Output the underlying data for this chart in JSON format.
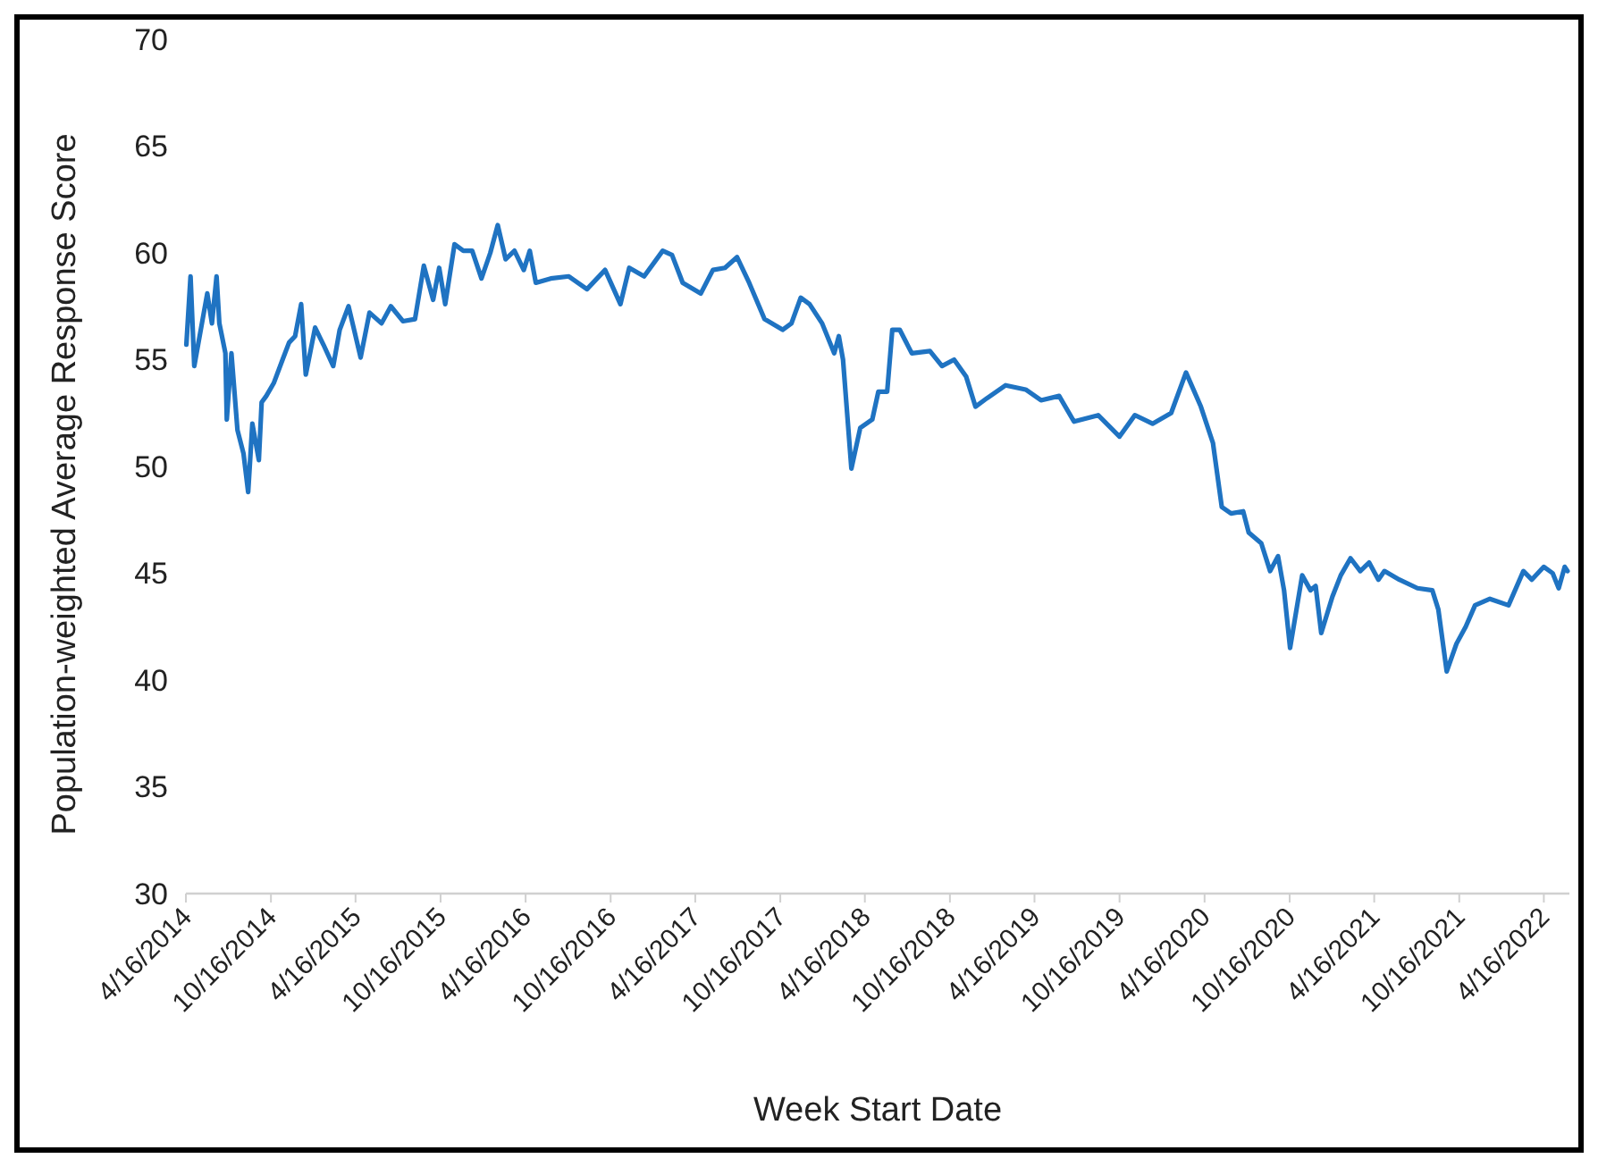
{
  "chart_data": {
    "type": "line",
    "xlabel": "Week Start Date",
    "ylabel": "Population-weighted Average Response Score",
    "xlim": [
      "2014-04-16",
      "2022-06-10"
    ],
    "xticks": [
      {
        "value": "2014-04-16",
        "label": "4/16/2014"
      },
      {
        "value": "2014-10-16",
        "label": "10/16/2014"
      },
      {
        "value": "2015-04-16",
        "label": "4/16/2015"
      },
      {
        "value": "2015-10-16",
        "label": "10/16/2015"
      },
      {
        "value": "2016-04-16",
        "label": "4/16/2016"
      },
      {
        "value": "2016-10-16",
        "label": "10/16/2016"
      },
      {
        "value": "2017-04-16",
        "label": "4/16/2017"
      },
      {
        "value": "2017-10-16",
        "label": "10/16/2017"
      },
      {
        "value": "2018-04-16",
        "label": "4/16/2018"
      },
      {
        "value": "2018-10-16",
        "label": "10/16/2018"
      },
      {
        "value": "2019-04-16",
        "label": "4/16/2019"
      },
      {
        "value": "2019-10-16",
        "label": "10/16/2019"
      },
      {
        "value": "2020-04-16",
        "label": "4/16/2020"
      },
      {
        "value": "2020-10-16",
        "label": "10/16/2020"
      },
      {
        "value": "2021-04-16",
        "label": "4/16/2021"
      },
      {
        "value": "2021-10-16",
        "label": "10/16/2021"
      },
      {
        "value": "2022-04-16",
        "label": "4/16/2022"
      }
    ],
    "ylim": [
      30,
      70
    ],
    "yticks": [
      30,
      35,
      40,
      45,
      50,
      55,
      60,
      65,
      70
    ],
    "grid": false,
    "marker": "none",
    "line_style": "solid",
    "series": [
      {
        "color": "#1f73c2",
        "x": [
          "2014-04-17",
          "2014-04-26",
          "2014-05-04",
          "2014-06-01",
          "2014-06-11",
          "2014-06-21",
          "2014-06-27",
          "2014-07-10",
          "2014-07-13",
          "2014-07-23",
          "2014-08-05",
          "2014-08-18",
          "2014-08-28",
          "2014-09-06",
          "2014-09-20",
          "2014-09-26",
          "2014-10-06",
          "2014-10-22",
          "2014-11-10",
          "2014-11-24",
          "2014-12-07",
          "2014-12-20",
          "2014-12-30",
          "2015-01-19",
          "2015-02-06",
          "2015-02-27",
          "2015-03-13",
          "2015-04-01",
          "2015-04-27",
          "2015-05-16",
          "2015-06-11",
          "2015-07-01",
          "2015-07-27",
          "2015-08-22",
          "2015-09-10",
          "2015-09-30",
          "2015-10-13",
          "2015-10-26",
          "2015-11-15",
          "2015-12-04",
          "2015-12-23",
          "2016-01-12",
          "2016-01-31",
          "2016-02-16",
          "2016-03-04",
          "2016-03-23",
          "2016-04-12",
          "2016-04-25",
          "2016-05-08",
          "2016-06-09",
          "2016-07-18",
          "2016-08-26",
          "2016-10-04",
          "2016-11-06",
          "2016-11-25",
          "2016-12-27",
          "2017-02-05",
          "2017-02-25",
          "2017-03-20",
          "2017-04-28",
          "2017-05-24",
          "2017-06-19",
          "2017-07-15",
          "2017-08-10",
          "2017-09-12",
          "2017-10-21",
          "2017-11-09",
          "2017-11-29",
          "2017-12-18",
          "2018-01-14",
          "2018-02-09",
          "2018-02-19",
          "2018-02-28",
          "2018-03-18",
          "2018-04-06",
          "2018-05-02",
          "2018-05-15",
          "2018-06-03",
          "2018-06-14",
          "2018-06-30",
          "2018-07-26",
          "2018-09-03",
          "2018-09-29",
          "2018-10-25",
          "2018-11-20",
          "2018-12-10",
          "2019-01-04",
          "2019-02-13",
          "2019-03-28",
          "2019-04-30",
          "2019-06-08",
          "2019-07-10",
          "2019-08-31",
          "2019-10-16",
          "2019-11-18",
          "2019-12-26",
          "2020-02-04",
          "2020-03-07",
          "2020-04-08",
          "2020-05-04",
          "2020-05-23",
          "2020-06-12",
          "2020-07-08",
          "2020-07-20",
          "2020-08-16",
          "2020-09-04",
          "2020-09-21",
          "2020-10-04",
          "2020-10-17",
          "2020-11-12",
          "2020-11-30",
          "2020-12-11",
          "2020-12-23",
          "2021-01-16",
          "2021-02-03",
          "2021-02-24",
          "2021-03-17",
          "2021-04-05",
          "2021-04-25",
          "2021-05-08",
          "2021-06-09",
          "2021-07-18",
          "2021-08-19",
          "2021-09-01",
          "2021-09-19",
          "2021-10-10",
          "2021-10-30",
          "2021-11-19",
          "2021-12-21",
          "2022-01-30",
          "2022-03-03",
          "2022-03-21",
          "2022-04-16",
          "2022-05-05",
          "2022-05-18",
          "2022-05-31",
          "2022-06-06"
        ],
        "values": [
          55.7,
          58.9,
          54.7,
          58.1,
          56.7,
          58.9,
          56.7,
          55.3,
          52.2,
          55.3,
          51.7,
          50.6,
          48.8,
          52,
          50.3,
          53,
          53.3,
          53.9,
          55,
          55.8,
          56.1,
          57.6,
          54.3,
          56.5,
          55.7,
          54.7,
          56.4,
          57.5,
          55.1,
          57.2,
          56.7,
          57.5,
          56.8,
          56.9,
          59.4,
          57.8,
          59.3,
          57.6,
          60.4,
          60.1,
          60.1,
          58.8,
          60,
          61.3,
          59.7,
          60.1,
          59.2,
          60.1,
          58.6,
          58.8,
          58.9,
          58.3,
          59.2,
          57.6,
          59.3,
          58.9,
          60.1,
          59.9,
          58.6,
          58.1,
          59.2,
          59.3,
          59.8,
          58.6,
          56.9,
          56.4,
          56.7,
          57.9,
          57.6,
          56.7,
          55.3,
          56.1,
          55,
          49.9,
          51.8,
          52.2,
          53.5,
          53.5,
          56.4,
          56.4,
          55.3,
          55.4,
          54.7,
          55,
          54.2,
          52.8,
          53.2,
          53.8,
          53.6,
          53.1,
          53.3,
          52.1,
          52.4,
          51.4,
          52.4,
          52,
          52.5,
          54.4,
          52.8,
          51.1,
          48.1,
          47.8,
          47.9,
          46.9,
          46.4,
          45.1,
          45.8,
          44.2,
          41.5,
          44.9,
          44.2,
          44.4,
          42.2,
          43.9,
          44.9,
          45.7,
          45.1,
          45.5,
          44.7,
          45.1,
          44.7,
          44.3,
          44.2,
          43.3,
          40.4,
          41.7,
          42.5,
          43.5,
          43.8,
          43.5,
          45.1,
          44.7,
          45.3,
          45,
          44.3,
          45.3,
          45.1
        ]
      }
    ]
  }
}
